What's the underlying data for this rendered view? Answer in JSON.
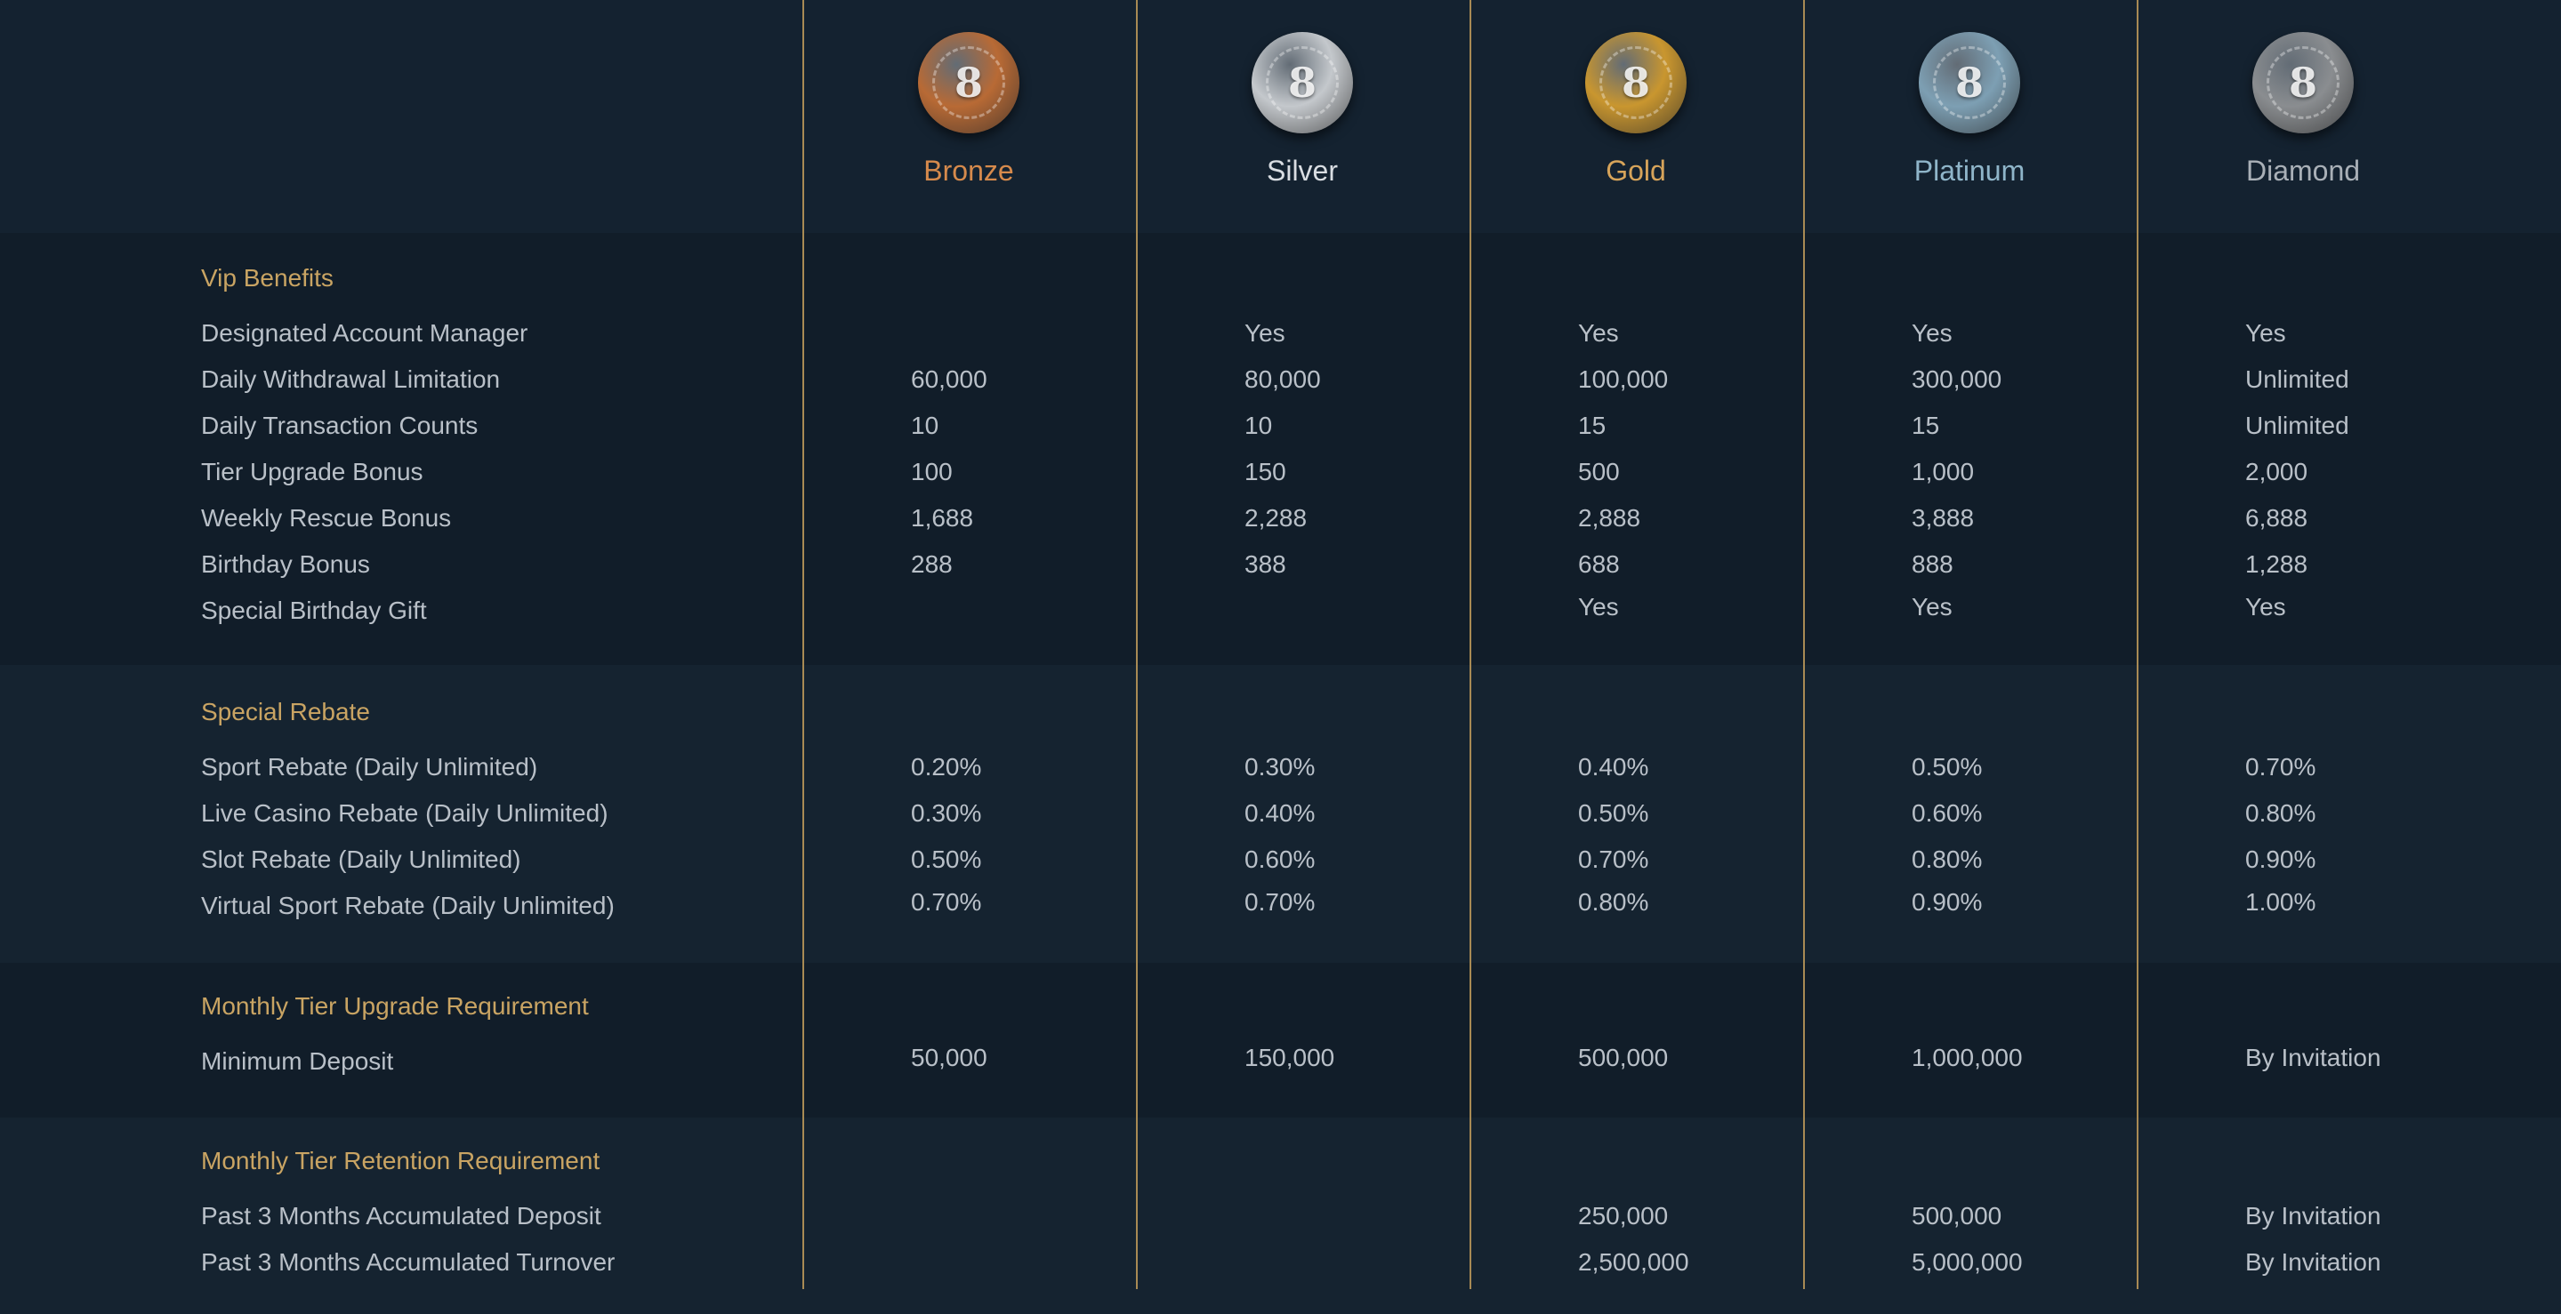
{
  "tiers": [
    {
      "name": "Bronze",
      "medal_icon": "bronze-medal-icon",
      "color": "#d68a4c",
      "medal_color": "#b86a35"
    },
    {
      "name": "Silver",
      "medal_icon": "silver-medal-icon",
      "color": "#d9dde2",
      "medal_color": "#c4c8cc"
    },
    {
      "name": "Gold",
      "medal_icon": "gold-medal-icon",
      "color": "#d7a45a",
      "medal_color": "#c9962f"
    },
    {
      "name": "Platinum",
      "medal_icon": "platinum-medal-icon",
      "color": "#8fb5c9",
      "medal_color": "#7d9fb3"
    },
    {
      "name": "Diamond",
      "medal_icon": "diamond-medal-icon",
      "color": "#a9b0b7",
      "medal_color": "#8a8d90"
    }
  ],
  "medal_number": "8",
  "accent_color": "#c9a463",
  "sections": [
    {
      "title": "Vip Benefits",
      "rows": [
        {
          "label": "Designated Account Manager",
          "values": [
            "",
            "Yes",
            "Yes",
            "Yes",
            "Yes"
          ]
        },
        {
          "label": "Daily Withdrawal Limitation",
          "values": [
            "60,000",
            "80,000",
            "100,000",
            "300,000",
            "Unlimited"
          ]
        },
        {
          "label": "Daily Transaction Counts",
          "values": [
            "10",
            "10",
            "15",
            "15",
            "Unlimited"
          ]
        },
        {
          "label": "Tier Upgrade Bonus",
          "values": [
            "100",
            "150",
            "500",
            "1,000",
            "2,000"
          ]
        },
        {
          "label": "Weekly Rescue Bonus",
          "values": [
            "1,688",
            "2,288",
            "2,888",
            "3,888",
            "6,888"
          ]
        },
        {
          "label": "Birthday Bonus",
          "values": [
            "288",
            "388",
            "688",
            "888",
            "1,288"
          ]
        },
        {
          "label": "Special Birthday Gift",
          "values": [
            "",
            "",
            "Yes",
            "Yes",
            "Yes"
          ]
        }
      ]
    },
    {
      "title": "Special Rebate",
      "rows": [
        {
          "label": "Sport Rebate (Daily Unlimited)",
          "values": [
            "0.20%",
            "0.30%",
            "0.40%",
            "0.50%",
            "0.70%"
          ]
        },
        {
          "label": "Live Casino Rebate (Daily Unlimited)",
          "values": [
            "0.30%",
            "0.40%",
            "0.50%",
            "0.60%",
            "0.80%"
          ]
        },
        {
          "label": "Slot Rebate (Daily Unlimited)",
          "values": [
            "0.50%",
            "0.60%",
            "0.70%",
            "0.80%",
            "0.90%"
          ]
        },
        {
          "label": "Virtual Sport Rebate (Daily Unlimited)",
          "values": [
            "0.70%",
            "0.70%",
            "0.80%",
            "0.90%",
            "1.00%"
          ]
        }
      ]
    },
    {
      "title": "Monthly Tier Upgrade Requirement",
      "rows": [
        {
          "label": "Minimum Deposit",
          "values": [
            "50,000",
            "150,000",
            "500,000",
            "1,000,000",
            "By Invitation"
          ]
        }
      ]
    },
    {
      "title": "Monthly Tier Retention Requirement",
      "rows": [
        {
          "label": "Past 3 Months Accumulated Deposit",
          "values": [
            "",
            "",
            "250,000",
            "500,000",
            "By Invitation"
          ]
        },
        {
          "label": "Past 3 Months Accumulated Turnover",
          "values": [
            "",
            "",
            "2,500,000",
            "5,000,000",
            "By Invitation"
          ]
        }
      ]
    }
  ]
}
